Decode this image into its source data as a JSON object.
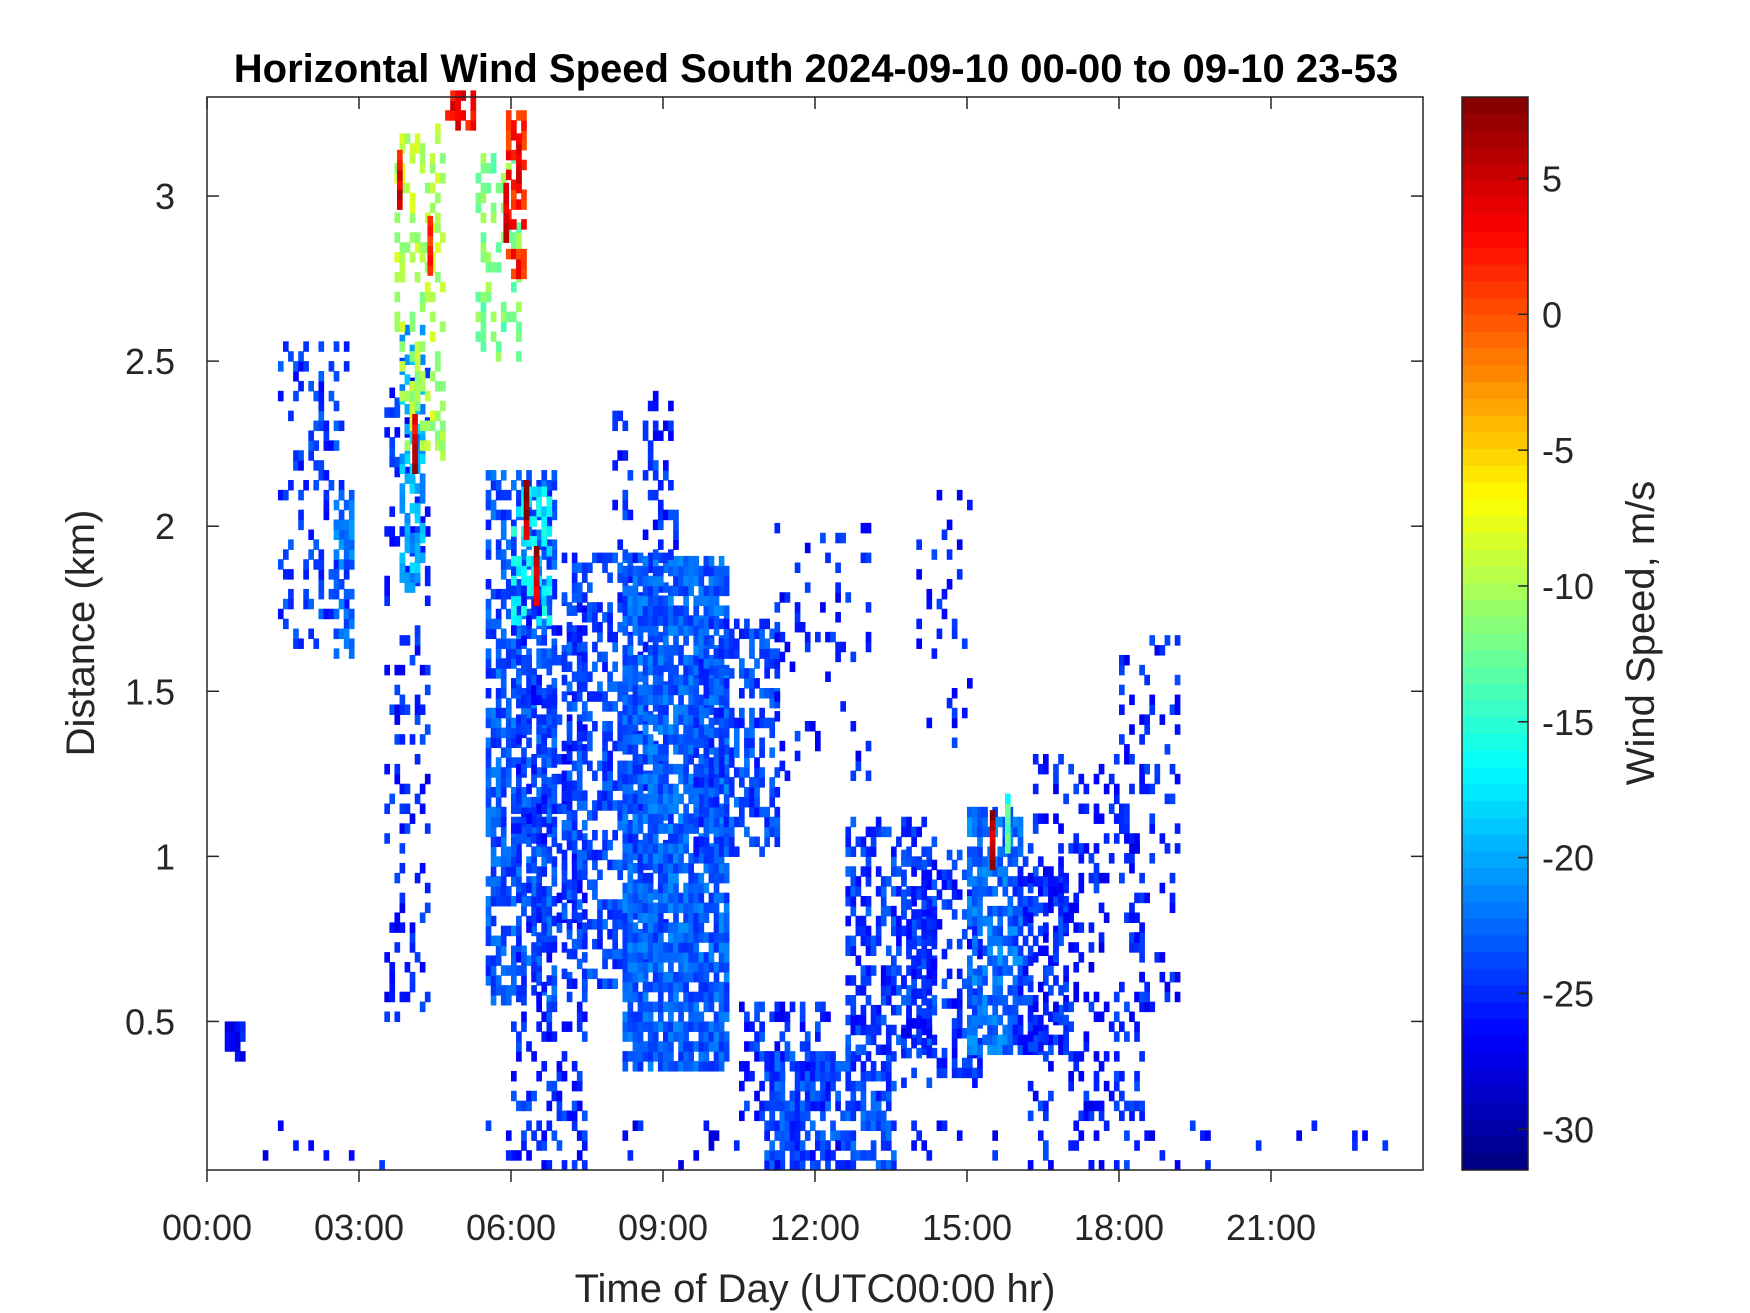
{
  "chart_data": {
    "type": "heatmap",
    "title": "Horizontal Wind Speed South 2024-09-10 00-00 to 09-10 23-53",
    "xlabel": "Time of Day (UTC00:00 hr)",
    "ylabel": "Distance (km)",
    "colorbar_label": "Wind Speed, m/s",
    "x_ticks": [
      "00:00",
      "03:00",
      "06:00",
      "09:00",
      "12:00",
      "15:00",
      "18:00",
      "21:00"
    ],
    "x_tick_hours": [
      0,
      3,
      6,
      9,
      12,
      15,
      18,
      21
    ],
    "xlim_hours": [
      0,
      24
    ],
    "y_ticks": [
      "0.5",
      "1",
      "1.5",
      "2",
      "2.5",
      "3"
    ],
    "y_tick_values": [
      0.5,
      1,
      1.5,
      2,
      2.5,
      3
    ],
    "ylim_km": [
      0.05,
      3.3
    ],
    "colorbar_ticks": [
      "5",
      "0",
      "-5",
      "-10",
      "-15",
      "-20",
      "-25",
      "-30"
    ],
    "colorbar_tick_values": [
      5,
      0,
      -5,
      -10,
      -15,
      -20,
      -25,
      -30
    ],
    "clim": [
      -31.5,
      8
    ],
    "colormap": "jet",
    "grid": false,
    "regions": [
      {
        "x": [
          0.35,
          0.65
        ],
        "y": [
          0.38,
          0.5
        ],
        "v": -26.5,
        "d": 0.9
      },
      {
        "x": [
          1.4,
          2.8
        ],
        "y": [
          1.6,
          2.55
        ],
        "v": -24.5,
        "d": 0.22
      },
      {
        "x": [
          2.5,
          2.85
        ],
        "y": [
          1.6,
          2.1
        ],
        "v": -22.5,
        "d": 0.65
      },
      {
        "x": [
          3.5,
          4.3
        ],
        "y": [
          0.5,
          2.5
        ],
        "v": -25.5,
        "d": 0.2
      },
      {
        "x": [
          3.8,
          4.2
        ],
        "y": [
          1.8,
          2.6
        ],
        "v": -20,
        "d": 0.55
      },
      {
        "x": [
          3.7,
          4.6
        ],
        "y": [
          2.2,
          3.2
        ],
        "v": -10,
        "d": 0.3
      },
      {
        "x": [
          4.7,
          5.2
        ],
        "y": [
          3.2,
          3.3
        ],
        "v": 3,
        "d": 0.6
      },
      {
        "x": [
          5.3,
          6.1
        ],
        "y": [
          2.5,
          3.1
        ],
        "v": -12,
        "d": 0.35
      },
      {
        "x": [
          5.9,
          6.2
        ],
        "y": [
          2.75,
          3.25
        ],
        "v": 2,
        "d": 0.5
      },
      {
        "x": [
          5.5,
          6.8
        ],
        "y": [
          0.55,
          2.15
        ],
        "v": -23.5,
        "d": 0.62
      },
      {
        "x": [
          6.0,
          6.7
        ],
        "y": [
          1.7,
          2.1
        ],
        "v": -17,
        "d": 0.5
      },
      {
        "x": [
          6.0,
          7.4
        ],
        "y": [
          0.05,
          1.8
        ],
        "v": -25,
        "d": 0.3
      },
      {
        "x": [
          7.0,
          9.0
        ],
        "y": [
          0.6,
          1.9
        ],
        "v": -24,
        "d": 0.5
      },
      {
        "x": [
          8.2,
          10.2
        ],
        "y": [
          0.35,
          1.9
        ],
        "v": -23,
        "d": 0.82
      },
      {
        "x": [
          8.0,
          9.2
        ],
        "y": [
          1.9,
          2.4
        ],
        "v": -25,
        "d": 0.25
      },
      {
        "x": [
          9.6,
          11.2
        ],
        "y": [
          1.0,
          1.7
        ],
        "v": -24,
        "d": 0.55
      },
      {
        "x": [
          10.5,
          12.2
        ],
        "y": [
          0.2,
          0.55
        ],
        "v": -25,
        "d": 0.45
      },
      {
        "x": [
          11.0,
          13.5
        ],
        "y": [
          0.05,
          0.4
        ],
        "v": -24,
        "d": 0.6
      },
      {
        "x": [
          12.6,
          14.3
        ],
        "y": [
          0.4,
          1.1
        ],
        "v": -24.5,
        "d": 0.5
      },
      {
        "x": [
          11.2,
          13.0
        ],
        "y": [
          1.2,
          2.0
        ],
        "v": -25.5,
        "d": 0.12
      },
      {
        "x": [
          14.0,
          15.0
        ],
        "y": [
          1.3,
          2.1
        ],
        "v": -25.5,
        "d": 0.12
      },
      {
        "x": [
          13.7,
          15.2
        ],
        "y": [
          0.3,
          1.0
        ],
        "v": -25,
        "d": 0.4
      },
      {
        "x": [
          15.0,
          16.0
        ],
        "y": [
          0.4,
          1.15
        ],
        "v": -22.5,
        "d": 0.7
      },
      {
        "x": [
          15.9,
          17.0
        ],
        "y": [
          0.4,
          1.0
        ],
        "v": -25,
        "d": 0.55
      },
      {
        "x": [
          16.2,
          18.5
        ],
        "y": [
          0.05,
          1.3
        ],
        "v": -25.5,
        "d": 0.22
      },
      {
        "x": [
          18.0,
          19.2
        ],
        "y": [
          0.5,
          1.65
        ],
        "v": -25.5,
        "d": 0.22
      },
      {
        "x": [
          0.8,
          23.5
        ],
        "y": [
          0.05,
          0.2
        ],
        "v": -26,
        "d": 0.035
      }
    ],
    "hotspots": [
      {
        "x": 3.75,
        "y": 3.05,
        "v": 4
      },
      {
        "x": 4.05,
        "y": 2.25,
        "v": 5
      },
      {
        "x": 4.35,
        "y": 2.85,
        "v": 3
      },
      {
        "x": 5.85,
        "y": 2.95,
        "v": 4
      },
      {
        "x": 6.25,
        "y": 2.05,
        "v": 6
      },
      {
        "x": 6.45,
        "y": 1.85,
        "v": 5
      },
      {
        "x": 6.1,
        "y": 3.1,
        "v": 3
      },
      {
        "x": 15.45,
        "y": 1.05,
        "v": 6
      },
      {
        "x": 15.75,
        "y": 1.1,
        "v": -14
      }
    ]
  }
}
